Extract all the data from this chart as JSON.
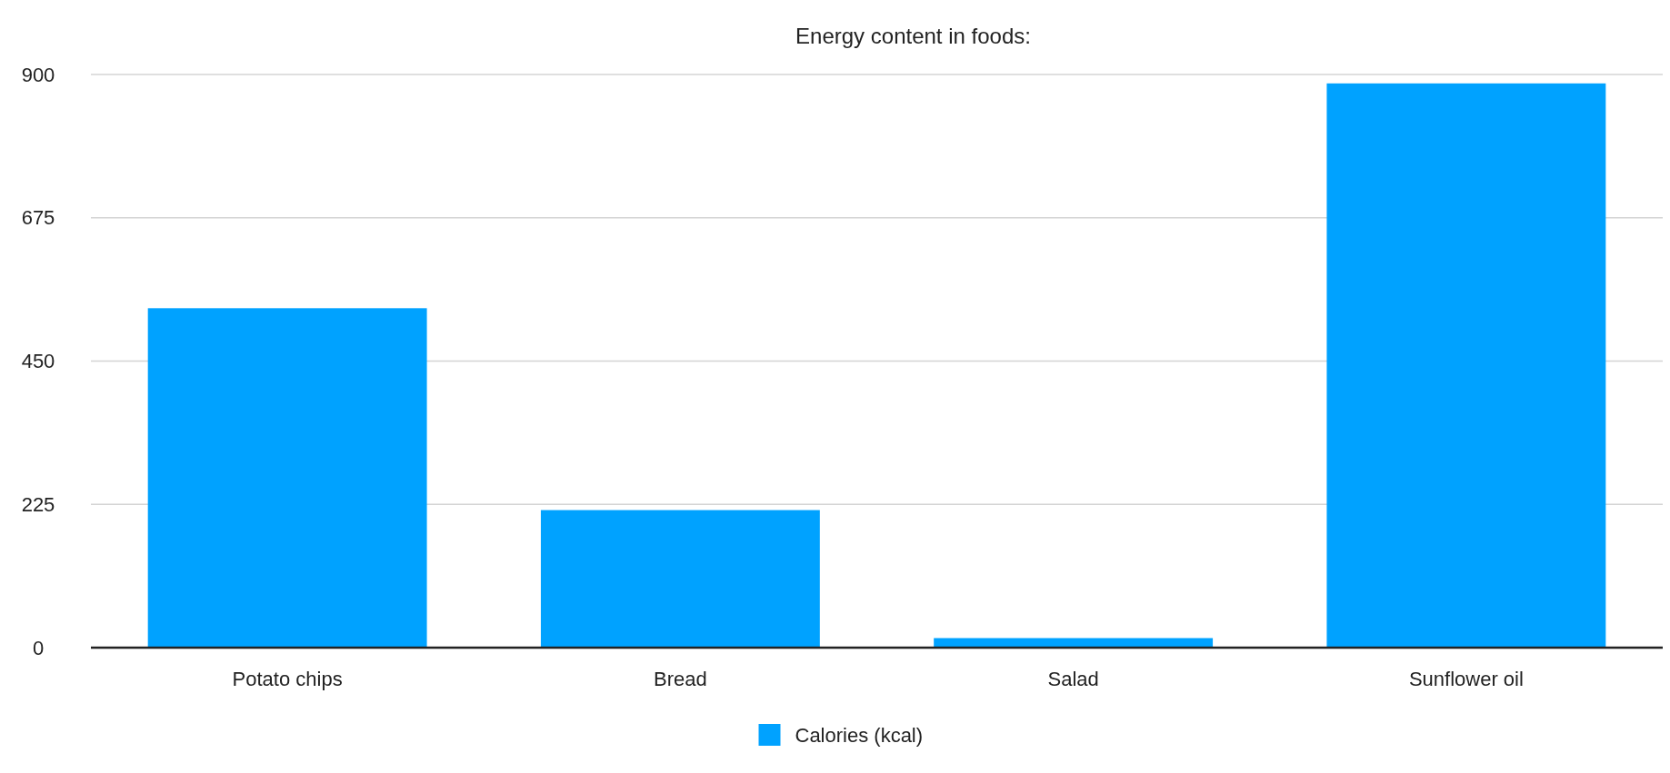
{
  "chart_data": {
    "type": "bar",
    "title": "Energy content in foods:",
    "categories": [
      "Potato chips",
      "Bread",
      "Salad",
      "Sunflower oil"
    ],
    "series": [
      {
        "name": "Calories (kcal)",
        "color": "#00a2ff",
        "values": [
          533,
          216,
          15,
          886
        ]
      }
    ],
    "ylim": [
      0,
      900
    ],
    "yticks": [
      0,
      225,
      450,
      675,
      900
    ],
    "grid": "y",
    "legend": "bottom"
  }
}
